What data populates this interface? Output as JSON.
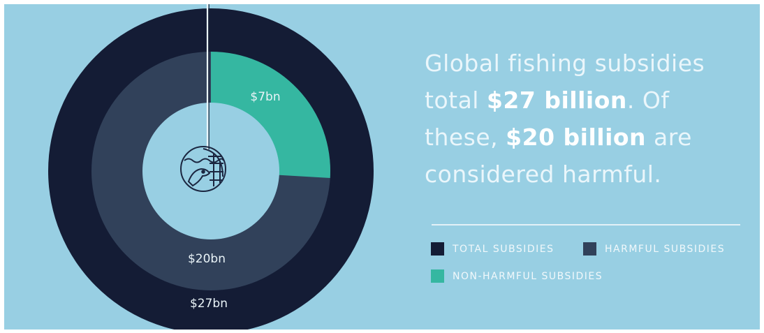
{
  "headline": {
    "line1": "Global fishing subsidies",
    "line2_pre": "total ",
    "line2_bold": "$27 billion",
    "line2_post": ". Of",
    "line3_pre": "these, ",
    "line3_bold": "$20 billion",
    "line3_post": " are",
    "line4": "considered harmful."
  },
  "colors": {
    "background": "#98cfe3",
    "total": "#141c35",
    "harmful": "#31415a",
    "non_harmful": "#35b7a1",
    "text": "#eaf6fb"
  },
  "icon": "fish-net-icon",
  "chart_data": {
    "type": "donut",
    "rings": [
      {
        "name": "TOTAL SUBSIDIES",
        "value": 27,
        "label": "$27bn",
        "color": "#141c35"
      },
      {
        "name": "HARMFUL SUBSIDIES",
        "value": 20,
        "label": "$20bn",
        "color": "#31415a"
      },
      {
        "name": "NON-HARMFUL SUBSIDIES",
        "value": 7,
        "label": "$7bn",
        "color": "#35b7a1"
      }
    ],
    "inner_ring_total": 27,
    "legend": [
      "TOTAL SUBSIDIES",
      "HARMFUL SUBSIDIES",
      "NON-HARMFUL SUBSIDIES"
    ],
    "legend_position": "bottom-right"
  }
}
